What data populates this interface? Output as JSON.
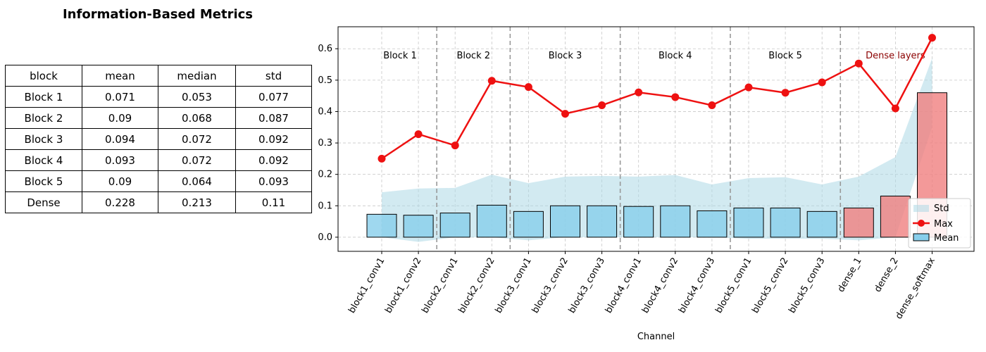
{
  "table": {
    "title": "Information-Based Metrics",
    "columns": [
      "block",
      "mean",
      "median",
      "std"
    ],
    "rows": [
      [
        "Block 1",
        "0.071",
        "0.053",
        "0.077"
      ],
      [
        "Block 2",
        "0.09",
        "0.068",
        "0.087"
      ],
      [
        "Block 3",
        "0.094",
        "0.072",
        "0.092"
      ],
      [
        "Block 4",
        "0.093",
        "0.072",
        "0.092"
      ],
      [
        "Block 5",
        "0.09",
        "0.064",
        "0.093"
      ],
      [
        "Dense",
        "0.228",
        "0.213",
        "0.11"
      ]
    ]
  },
  "chart_data": {
    "type": "bar",
    "title": "",
    "xlabel": "Channel",
    "ylabel": "",
    "ylim": [
      -0.045,
      0.67
    ],
    "yticks": [
      0.0,
      0.1,
      0.2,
      0.3,
      0.4,
      0.5,
      0.6
    ],
    "ytick_labels": [
      "0.0",
      "0.1",
      "0.2",
      "0.3",
      "0.4",
      "0.5",
      "0.6"
    ],
    "grid": true,
    "legend_position": "lower-right",
    "categories": [
      "block1_conv1",
      "block1_conv2",
      "block2_conv1",
      "block2_conv2",
      "block3_conv1",
      "block3_conv2",
      "block3_conv3",
      "block4_conv1",
      "block4_conv2",
      "block4_conv3",
      "block5_conv1",
      "block5_conv2",
      "block5_conv3",
      "dense_1",
      "dense_2",
      "dense_softmax"
    ],
    "series": [
      {
        "name": "Mean",
        "kind": "bar",
        "values": [
          0.073,
          0.07,
          0.077,
          0.102,
          0.082,
          0.1,
          0.1,
          0.098,
          0.1,
          0.084,
          0.093,
          0.093,
          0.082,
          0.093,
          0.131,
          0.46
        ]
      },
      {
        "name": "Max",
        "kind": "line",
        "values": [
          0.25,
          0.328,
          0.292,
          0.498,
          0.478,
          0.393,
          0.42,
          0.461,
          0.446,
          0.42,
          0.477,
          0.46,
          0.493,
          0.553,
          0.41,
          0.635
        ]
      },
      {
        "name": "Std",
        "kind": "band",
        "lower": [
          0.0,
          -0.015,
          0.0,
          0.0,
          -0.01,
          0.0,
          0.0,
          0.0,
          0.0,
          0.0,
          -0.005,
          -0.005,
          -0.005,
          -0.01,
          0.0,
          0.35
        ],
        "upper": [
          0.143,
          0.155,
          0.157,
          0.199,
          0.172,
          0.193,
          0.195,
          0.193,
          0.198,
          0.168,
          0.188,
          0.191,
          0.168,
          0.193,
          0.255,
          0.57
        ]
      }
    ],
    "groups": [
      {
        "label": "Block 1",
        "start": 0,
        "end": 1
      },
      {
        "label": "Block 2",
        "start": 2,
        "end": 3
      },
      {
        "label": "Block 3",
        "start": 4,
        "end": 6
      },
      {
        "label": "Block 4",
        "start": 7,
        "end": 9
      },
      {
        "label": "Block 5",
        "start": 10,
        "end": 12
      },
      {
        "label": "Dense layers",
        "start": 13,
        "end": 15
      }
    ],
    "colors": {
      "bar": "#87ceeb",
      "dense_bar": "#f08080",
      "line": "#ee1111",
      "band": "#add8e6",
      "dense_label": "#8b0000"
    }
  }
}
